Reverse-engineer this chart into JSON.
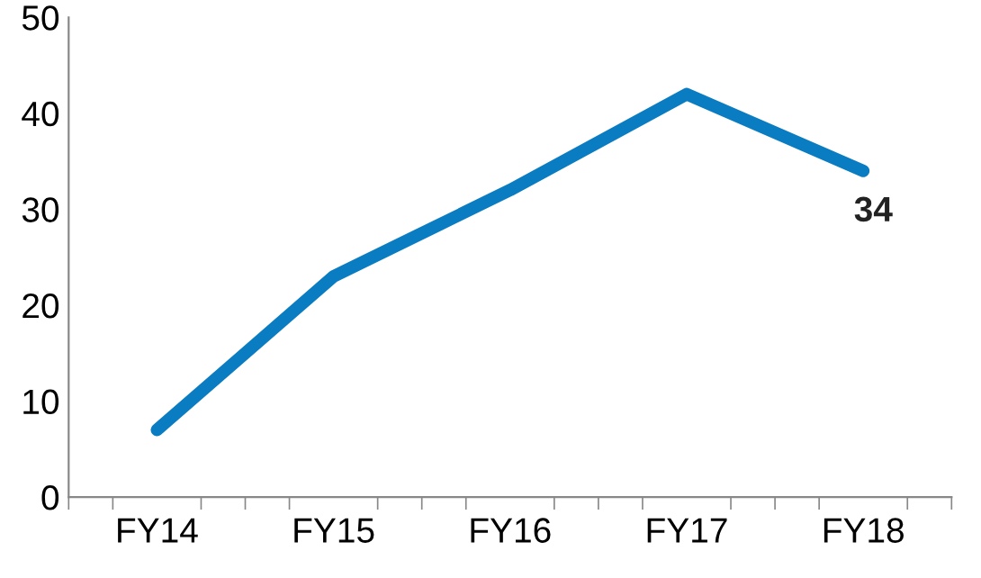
{
  "chart_data": {
    "type": "line",
    "categories": [
      "FY14",
      "FY15",
      "FY16",
      "FY17",
      "FY18"
    ],
    "series": [
      {
        "color": "#0a7cc1",
        "values": [
          7,
          23,
          32,
          42,
          34
        ],
        "value_labels": [
          null,
          null,
          null,
          null,
          "34"
        ]
      }
    ],
    "ylim": [
      0,
      50
    ],
    "yticks": [
      0,
      10,
      20,
      30,
      40,
      50
    ],
    "marker": "none",
    "line_style": "solid"
  }
}
